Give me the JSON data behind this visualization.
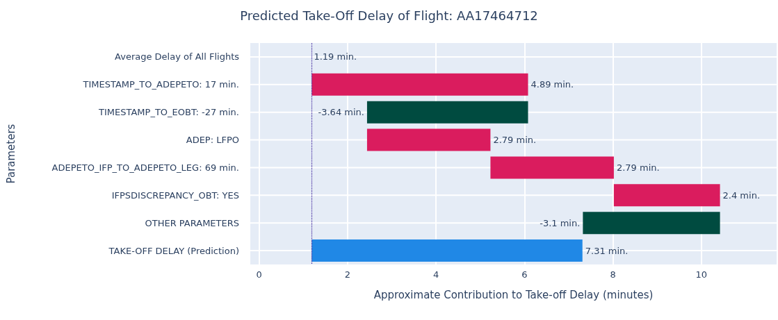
{
  "chart_data": {
    "type": "bar",
    "orientation": "horizontal",
    "title": "Predicted Take-Off Delay of Flight: AA17464712",
    "xlabel": "Approximate Contribution to Take-off Delay (minutes)",
    "ylabel": "Parameters",
    "categories": [
      "Average Delay of All Flights",
      "TIMESTAMP_TO_ADEPETO: 17 min.",
      "TIMESTAMP_TO_EOBT: -27 min.",
      "ADEP: LFPO",
      "ADEPETO_IFP_TO_ADEPETO_LEG: 69 min.",
      "IFPSDISCREPANCY_OBT: YES",
      "OTHER PARAMETERS",
      "TAKE-OFF DELAY (Prediction)"
    ],
    "base": [
      null,
      1.19,
      6.08,
      2.44,
      5.23,
      8.02,
      10.42,
      1.19
    ],
    "values": [
      null,
      4.89,
      -3.64,
      2.79,
      2.79,
      2.4,
      -3.1,
      6.12
    ],
    "value_labels": [
      null,
      "4.89 min.",
      "-3.64 min.",
      "2.79 min.",
      "2.79 min.",
      "2.4 min.",
      "-3.1 min.",
      "7.31 min."
    ],
    "colors": [
      null,
      "#da1c5e",
      "#004b40",
      "#da1c5e",
      "#da1c5e",
      "#da1c5e",
      "#004b40",
      "#2088e6"
    ],
    "annotations": [
      {
        "text": "1.19 min.",
        "x": 1.19,
        "y": "Average Delay of All Flights"
      }
    ],
    "ref_lines": [
      {
        "axis": "x",
        "value": 1.19,
        "color": "#3b1f9a",
        "line_style": "dotted"
      }
    ],
    "xlim": [
      -0.2,
      11.7
    ],
    "xticks": [
      0,
      2,
      4,
      6,
      8,
      10
    ],
    "grid": true
  }
}
